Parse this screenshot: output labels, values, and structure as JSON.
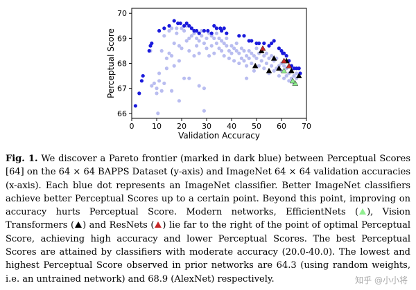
{
  "chart_data": {
    "type": "scatter",
    "xlabel": "Validation Accuracy",
    "ylabel": "Perceptual Score",
    "xlim": [
      0,
      70
    ],
    "ylim": [
      65.8,
      70.2
    ],
    "xticks": [
      0,
      10,
      20,
      30,
      40,
      50,
      60,
      70
    ],
    "yticks": [
      66,
      67,
      68,
      69,
      70
    ],
    "colors": {
      "all": "#b9bdf0",
      "pareto": "#1a1adc",
      "efficientnet": "#90EE90",
      "vit": "#000000",
      "resnet": "#c62828"
    },
    "series": [
      {
        "name": "ImageNet classifiers",
        "marker": "circle",
        "points": [
          [
            7.5,
            68.5
          ],
          [
            9,
            67.2
          ],
          [
            10,
            66.8
          ],
          [
            10,
            67.0
          ],
          [
            11,
            67.3
          ],
          [
            11,
            67.6
          ],
          [
            12,
            66.9
          ],
          [
            12,
            68.5
          ],
          [
            13,
            67.2
          ],
          [
            13,
            69.1
          ],
          [
            14,
            68.2
          ],
          [
            14,
            67.8
          ],
          [
            15,
            68.4
          ],
          [
            15,
            69.3
          ],
          [
            16,
            69.4
          ],
          [
            16,
            68.3
          ],
          [
            17,
            67.9
          ],
          [
            17,
            68.8
          ],
          [
            18,
            69.4
          ],
          [
            18,
            69.2
          ],
          [
            19,
            68.1
          ],
          [
            19,
            68.7
          ],
          [
            20,
            69.4
          ],
          [
            20,
            68.6
          ],
          [
            21,
            69.3
          ],
          [
            21,
            67.4
          ],
          [
            22,
            69.5
          ],
          [
            22,
            68.9
          ],
          [
            23,
            69.0
          ],
          [
            23,
            68.5
          ],
          [
            24,
            69.4
          ],
          [
            24,
            69.1
          ],
          [
            25,
            69.2
          ],
          [
            25,
            68.3
          ],
          [
            26,
            69.0
          ],
          [
            26,
            68.7
          ],
          [
            27,
            68.9
          ],
          [
            27,
            68.4
          ],
          [
            28,
            69.3
          ],
          [
            28,
            69.1
          ],
          [
            29,
            68.8
          ],
          [
            29,
            67.0
          ],
          [
            30,
            69.0
          ],
          [
            30,
            68.6
          ],
          [
            31,
            69.2
          ],
          [
            31,
            68.3
          ],
          [
            32,
            69.1
          ],
          [
            32,
            68.7
          ],
          [
            33,
            69.0
          ],
          [
            33,
            68.4
          ],
          [
            34,
            69.2
          ],
          [
            34,
            68.8
          ],
          [
            35,
            68.6
          ],
          [
            35,
            69.0
          ],
          [
            36,
            68.9
          ],
          [
            36,
            68.5
          ],
          [
            37,
            68.8
          ],
          [
            37,
            68.3
          ],
          [
            38,
            68.7
          ],
          [
            38,
            69.0
          ],
          [
            39,
            68.5
          ],
          [
            39,
            68.2
          ],
          [
            40,
            68.7
          ],
          [
            40,
            68.4
          ],
          [
            41,
            68.6
          ],
          [
            41,
            68.1
          ],
          [
            42,
            68.5
          ],
          [
            42,
            68.8
          ],
          [
            43,
            68.4
          ],
          [
            43,
            68.0
          ],
          [
            44,
            68.6
          ],
          [
            44,
            68.2
          ],
          [
            45,
            68.5
          ],
          [
            45,
            68.1
          ],
          [
            46,
            68.3
          ],
          [
            46,
            67.9
          ],
          [
            47,
            68.5
          ],
          [
            47,
            68.2
          ],
          [
            48,
            68.4
          ],
          [
            48,
            68.0
          ],
          [
            49,
            68.3
          ],
          [
            49,
            67.7
          ],
          [
            50,
            68.6
          ],
          [
            50,
            68.2
          ],
          [
            51,
            68.4
          ],
          [
            51,
            67.9
          ],
          [
            52,
            68.5
          ],
          [
            52,
            68.1
          ],
          [
            53,
            68.3
          ],
          [
            53,
            67.8
          ],
          [
            54,
            68.4
          ],
          [
            54,
            68.0
          ],
          [
            55,
            68.2
          ],
          [
            55,
            67.6
          ],
          [
            56,
            68.3
          ],
          [
            56,
            67.9
          ],
          [
            57,
            68.1
          ],
          [
            57,
            67.7
          ],
          [
            58,
            68.2
          ],
          [
            58,
            67.8
          ],
          [
            59,
            67.9
          ],
          [
            59,
            67.5
          ],
          [
            60,
            68.0
          ],
          [
            60,
            67.7
          ],
          [
            61,
            67.9
          ],
          [
            61,
            67.4
          ],
          [
            62,
            67.8
          ],
          [
            62,
            67.5
          ],
          [
            63,
            67.6
          ],
          [
            63,
            67.3
          ],
          [
            64,
            67.7
          ],
          [
            64,
            67.4
          ],
          [
            65,
            67.5
          ],
          [
            65,
            67.2
          ],
          [
            66,
            67.4
          ],
          [
            66,
            67.6
          ],
          [
            19,
            66.5
          ],
          [
            16,
            66.9
          ],
          [
            29,
            66.1
          ],
          [
            23,
            67.4
          ],
          [
            8,
            67.1
          ],
          [
            46,
            67.4
          ],
          [
            10.5,
            66.0
          ],
          [
            27,
            67.1
          ]
        ]
      },
      {
        "name": "Pareto frontier",
        "marker": "circle",
        "points": [
          [
            1.5,
            66.3
          ],
          [
            3,
            66.8
          ],
          [
            4,
            67.3
          ],
          [
            4.5,
            67.5
          ],
          [
            7,
            68.5
          ],
          [
            7.5,
            68.7
          ],
          [
            8,
            68.8
          ],
          [
            11,
            69.3
          ],
          [
            13,
            69.4
          ],
          [
            15,
            69.5
          ],
          [
            17,
            69.7
          ],
          [
            18.5,
            69.6
          ],
          [
            19.5,
            69.6
          ],
          [
            21,
            69.5
          ],
          [
            22,
            69.6
          ],
          [
            23,
            69.5
          ],
          [
            24,
            69.4
          ],
          [
            25,
            69.3
          ],
          [
            26,
            69.3
          ],
          [
            27,
            69.2
          ],
          [
            29,
            69.3
          ],
          [
            30.5,
            69.3
          ],
          [
            32,
            69.2
          ],
          [
            33,
            69.5
          ],
          [
            34,
            69.4
          ],
          [
            35.5,
            69.4
          ],
          [
            36,
            69.3
          ],
          [
            37,
            69.4
          ],
          [
            38,
            69.2
          ],
          [
            43,
            69.1
          ],
          [
            45,
            69.1
          ],
          [
            47,
            68.9
          ],
          [
            48,
            68.9
          ],
          [
            50,
            68.8
          ],
          [
            51,
            68.8
          ],
          [
            53,
            68.8
          ],
          [
            55,
            68.7
          ],
          [
            56,
            68.8
          ],
          [
            57,
            68.9
          ],
          [
            59,
            68.6
          ],
          [
            60,
            68.5
          ],
          [
            60.5,
            68.4
          ],
          [
            61,
            68.4
          ],
          [
            62,
            68.3
          ],
          [
            63,
            68.1
          ],
          [
            64,
            67.9
          ],
          [
            65,
            67.8
          ],
          [
            66,
            67.8
          ],
          [
            67,
            67.8
          ],
          [
            67.5,
            67.6
          ]
        ]
      },
      {
        "name": "EfficientNets",
        "marker": "triangle",
        "points": [
          [
            61,
            67.7
          ],
          [
            65.5,
            67.2
          ],
          [
            64.5,
            67.3
          ]
        ]
      },
      {
        "name": "Vision Transformers",
        "marker": "triangle",
        "points": [
          [
            49.5,
            67.9
          ],
          [
            52,
            68.5
          ],
          [
            55,
            67.7
          ],
          [
            57,
            68.2
          ],
          [
            59,
            67.8
          ],
          [
            62,
            68.1
          ],
          [
            64,
            67.7
          ],
          [
            67,
            67.5
          ]
        ]
      },
      {
        "name": "ResNets",
        "marker": "triangle",
        "points": [
          [
            61,
            68.1
          ],
          [
            63,
            67.9
          ],
          [
            52.5,
            68.6
          ]
        ]
      }
    ]
  },
  "caption": {
    "label": "Fig. 1.",
    "text_1": " We discover a Pareto frontier (marked in dark blue) between Perceptual Scores [64] on the 64 × 64 BAPPS Dataset (y-axis) and ImageNet 64 × 64 validation accuracies (x-axis). Each blue dot represents an ImageNet classifier. Better ImageNet classifiers achieve better Perceptual Scores up to a certain point. Beyond this point, improving on accuracy hurts Perceptual Score. Modern networks, EfficientNets (",
    "text_2": "), Vision Transformers (",
    "text_3": ") and ResNets (",
    "text_4": ") lie far to the right of the point of optimal Perceptual Score, achieving high accuracy and lower Perceptual Scores. The best Perceptual Scores are attained by classifiers with moderate accuracy (20.0-40.0). The lowest and highest Perceptual Score observed in prior networks are 64.3 (using random weights, i.e. an untrained network) and 68.9 (AlexNet) respectively."
  },
  "watermark": "知乎 @小小将"
}
